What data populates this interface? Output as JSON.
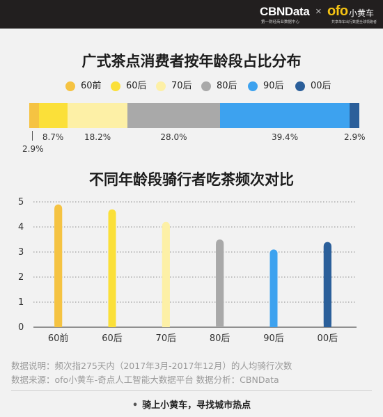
{
  "header": {
    "cbn_logo": "CBNData",
    "cbn_sub": "第一财经商业数据中心",
    "separator": "×",
    "ofo_logo": "ofo",
    "ofo_cn": "小黄车",
    "ofo_sub": "共享单车出行数据全球领跑者",
    "bg_color": "#221f1f"
  },
  "chart_data": [
    {
      "type": "bar",
      "stacked": true,
      "orientation": "horizontal",
      "title": "广式茶点消费者按年龄段占比分布",
      "categories": [
        "60前",
        "60后",
        "70后",
        "80后",
        "90后",
        "00后"
      ],
      "values": [
        2.9,
        8.7,
        18.2,
        28.0,
        39.4,
        2.9
      ],
      "value_labels": [
        "2.9%",
        "8.7%",
        "18.2%",
        "28.0%",
        "39.4%",
        "2.9%"
      ],
      "colors": [
        "#f5c342",
        "#fbe039",
        "#fdf0a6",
        "#a9a9a9",
        "#3da2ef",
        "#2b5f9a"
      ],
      "legend": "top"
    },
    {
      "type": "bar",
      "title": "不同年龄段骑行者吃茶频次对比",
      "categories": [
        "60前",
        "60后",
        "70后",
        "80后",
        "90后",
        "00后"
      ],
      "values": [
        4.9,
        4.7,
        4.2,
        3.5,
        3.1,
        3.4
      ],
      "yticks": [
        "0",
        "1",
        "2",
        "3",
        "4",
        "5"
      ],
      "ylim": [
        0,
        5
      ],
      "grid": "dotted horizontal",
      "colors": [
        "#f5c342",
        "#fbe039",
        "#fdf0a6",
        "#a9a9a9",
        "#3da2ef",
        "#2b5f9a"
      ]
    }
  ],
  "footnotes": {
    "line1": "数据说明：频次指275天内（2017年3月-2017年12月）的人均骑行次数",
    "line2": "数据来源：ofo小黄车-奇点人工智能大数据平台     数据分析：CBNData"
  },
  "slogan": "骑上小黄车，寻找城市热点",
  "slogan_dot": "•"
}
